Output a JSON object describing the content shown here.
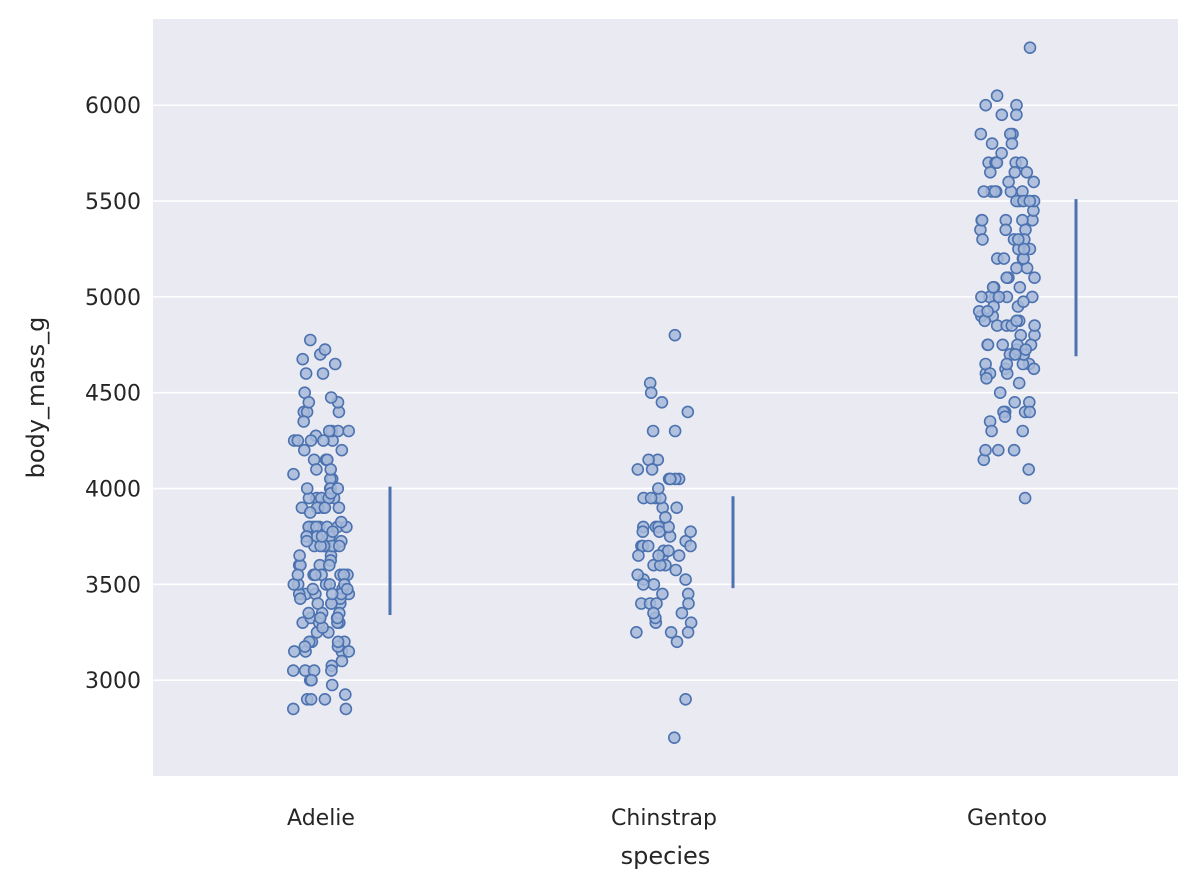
{
  "chart_data": {
    "type": "scatter",
    "subtype": "strip-plot-with-sd-bars",
    "title": "",
    "xlabel": "species",
    "ylabel": "body_mass_g",
    "categories": [
      "Adelie",
      "Chinstrap",
      "Gentoo"
    ],
    "yticks": [
      "3000",
      "3500",
      "4000",
      "4500",
      "5000",
      "5500",
      "6000"
    ],
    "ylim": [
      2500,
      6450
    ],
    "grid": true,
    "colors": {
      "background": "#eaeaf2",
      "grid": "#ffffff",
      "point_edge": "#4c72b0",
      "point_face": "#a6b9d9",
      "error_bar": "#4c72b0"
    },
    "error_bars": [
      {
        "category": "Adelie",
        "low": 3340,
        "high": 4010
      },
      {
        "category": "Chinstrap",
        "low": 3480,
        "high": 3960
      },
      {
        "category": "Gentoo",
        "low": 4690,
        "high": 5510
      }
    ],
    "series": [
      {
        "category": "Adelie",
        "values": [
          3750,
          3800,
          3250,
          3450,
          3650,
          3625,
          4675,
          3475,
          4250,
          3300,
          3700,
          3200,
          3800,
          4400,
          3700,
          3450,
          4500,
          3325,
          4200,
          3400,
          3600,
          3800,
          3950,
          3800,
          3800,
          3550,
          3200,
          3150,
          3950,
          3250,
          3900,
          3300,
          3900,
          3325,
          4150,
          3950,
          3550,
          3300,
          4650,
          3150,
          3900,
          3100,
          4400,
          3000,
          4600,
          3425,
          2975,
          3450,
          4150,
          3500,
          4300,
          3450,
          4050,
          2900,
          3700,
          3550,
          3800,
          2850,
          3750,
          3150,
          4400,
          3600,
          4050,
          2850,
          3950,
          3350,
          4100,
          3050,
          4450,
          3600,
          3900,
          3550,
          4150,
          3700,
          4250,
          3700,
          3900,
          3550,
          4000,
          3200,
          4700,
          3800,
          4200,
          3350,
          3550,
          3800,
          3500,
          3950,
          3600,
          3550,
          4300,
          3400,
          4450,
          3300,
          4300,
          3700,
          4350,
          2900,
          4100,
          3725,
          4725,
          3075,
          4250,
          2925,
          3550,
          3750,
          3900,
          3175,
          4775,
          3825,
          4600,
          3200,
          4275,
          3900,
          4075,
          2900,
          3775,
          3350,
          3325,
          3150,
          3500,
          3450,
          3875,
          3050,
          4000,
          3275,
          4300,
          3050,
          4000,
          3325,
          3500,
          3500,
          4475,
          3425,
          3900,
          3175,
          3975,
          3400,
          4250,
          3400,
          3475,
          3050,
          3725,
          3000,
          3650,
          4250,
          3475,
          3450,
          3750,
          3700,
          4000
        ]
      },
      {
        "category": "Chinstrap",
        "values": [
          3500,
          3900,
          3650,
          3525,
          3725,
          3950,
          3250,
          3750,
          4150,
          3700,
          3800,
          3775,
          3700,
          4050,
          3575,
          4050,
          3300,
          3700,
          3450,
          4400,
          3600,
          3400,
          2900,
          3800,
          3300,
          4150,
          3400,
          3800,
          3700,
          4550,
          3200,
          4300,
          3350,
          4100,
          3600,
          3900,
          3850,
          4800,
          2700,
          4500,
          3950,
          3650,
          3550,
          3500,
          3675,
          4450,
          3400,
          4300,
          3250,
          3675,
          3325,
          3950,
          3600,
          4050,
          3350,
          3450,
          3250,
          4050,
          3800,
          3525,
          3950,
          3650,
          3650,
          4000,
          3400,
          3775,
          4100,
          3775
        ]
      },
      {
        "category": "Gentoo",
        "values": [
          4500,
          5700,
          4450,
          5700,
          5400,
          4550,
          4800,
          5200,
          4400,
          5150,
          4650,
          5550,
          4650,
          5850,
          4200,
          5850,
          4150,
          6300,
          4800,
          5350,
          5700,
          5000,
          4400,
          5050,
          5000,
          5100,
          4100,
          5650,
          4600,
          5550,
          5250,
          4700,
          5050,
          6050,
          5150,
          5400,
          4950,
          5250,
          4350,
          5350,
          3950,
          5700,
          4300,
          4750,
          5550,
          4900,
          4200,
          5400,
          5100,
          5300,
          4850,
          5300,
          4400,
          5000,
          4900,
          5050,
          4300,
          5000,
          4450,
          5550,
          4200,
          5300,
          4400,
          5650,
          4700,
          5700,
          4650,
          5800,
          4700,
          5550,
          4750,
          5000,
          5100,
          5200,
          4700,
          5800,
          4600,
          6000,
          4750,
          5950,
          4625,
          5450,
          4725,
          5350,
          4750,
          5600,
          4600,
          5300,
          4875,
          5550,
          4950,
          5400,
          4750,
          5650,
          4850,
          5200,
          4925,
          4875,
          4625,
          5250,
          4850,
          5600,
          4975,
          5500,
          4725,
          5500,
          4700,
          5500,
          4575,
          5500,
          5000,
          5950,
          4650,
          5500,
          4375,
          5850,
          4875,
          6000,
          4925,
          4850,
          5750,
          5200,
          5400
        ]
      }
    ]
  }
}
